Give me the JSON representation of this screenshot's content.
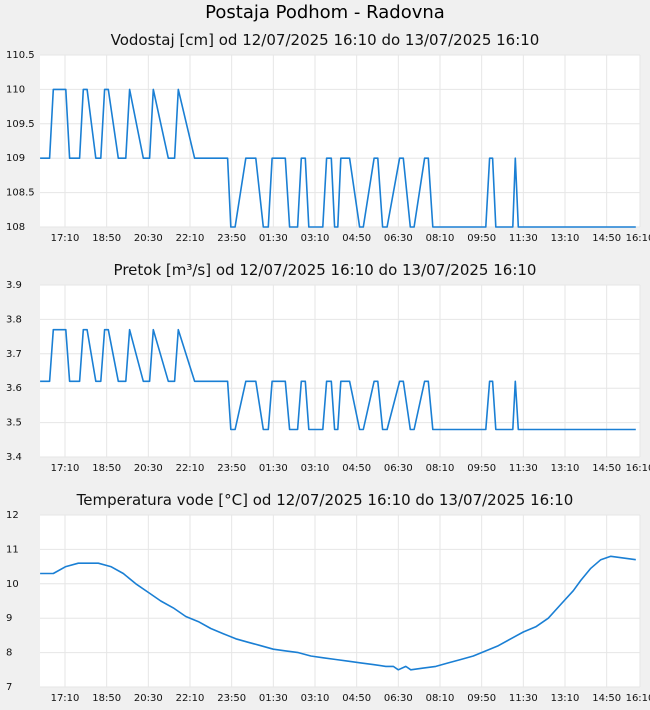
{
  "page": {
    "title": "Postaja Podhom - Radovna"
  },
  "chart_data": [
    {
      "type": "line",
      "title": "Vodostaj [cm] od 12/07/2025 16:10 do 13/07/2025 16:10",
      "xlabel": "",
      "ylabel": "",
      "x_range": [
        "12/07/2025 16:10",
        "13/07/2025 16:10"
      ],
      "ylim": [
        108,
        110.5
      ],
      "y_ticks": [
        "108",
        "108.5",
        "109",
        "109.5",
        "110",
        "110.5"
      ],
      "x_ticks": [
        "17:10",
        "18:50",
        "20:30",
        "22:10",
        "23:50",
        "01:30",
        "03:10",
        "04:50",
        "06:30",
        "08:10",
        "09:50",
        "11:30",
        "13:10",
        "14:50",
        "16:10"
      ],
      "grid": true,
      "color": "#1a7fd4",
      "series": [
        {
          "x": [
            16.17,
            16.55,
            16.7,
            16.85,
            17.2,
            17.35,
            17.5,
            17.75,
            17.9,
            18.05,
            18.4,
            18.6,
            18.75,
            18.9,
            19.3,
            19.5,
            19.6,
            19.75,
            20.3,
            20.5,
            20.55,
            20.7,
            21.3,
            21.5,
            21.55,
            21.7,
            22.35,
            23.67,
            23.8,
            23.97,
            24.4,
            24.57,
            24.8,
            25.1,
            25.3,
            25.45,
            25.98,
            26.15,
            26.47,
            26.62,
            26.78,
            26.92,
            27.48,
            27.63,
            27.82,
            27.95,
            28.08,
            28.2,
            28.42,
            28.55,
            28.95,
            29.1,
            29.53,
            29.68,
            29.87,
            30.05,
            30.55,
            30.7,
            30.98,
            31.13,
            31.55,
            31.7,
            31.88,
            32.05,
            34.0,
            34.15,
            34.27,
            34.4,
            34.95,
            35.08,
            35.18,
            35.3,
            40.0
          ],
          "y": [
            109,
            109,
            110,
            110,
            110,
            109,
            109,
            109,
            110,
            110,
            109,
            109,
            110,
            110,
            109,
            109,
            109,
            110,
            109,
            109,
            109,
            110,
            109,
            109,
            109,
            110,
            109,
            109,
            108,
            108,
            109,
            109,
            109,
            108,
            108,
            109,
            109,
            108,
            108,
            109,
            109,
            108,
            108,
            109,
            109,
            108,
            108,
            109,
            109,
            109,
            108,
            108,
            109,
            109,
            108,
            108,
            109,
            109,
            108,
            108,
            109,
            109,
            108,
            108,
            108,
            109,
            109,
            108,
            108,
            108,
            109,
            108,
            108
          ]
        }
      ]
    },
    {
      "type": "line",
      "title": "Pretok [m³/s] od 12/07/2025 16:10 do 13/07/2025 16:10",
      "xlabel": "",
      "ylabel": "",
      "x_range": [
        "12/07/2025 16:10",
        "13/07/2025 16:10"
      ],
      "ylim": [
        3.4,
        3.9
      ],
      "y_ticks": [
        "3.4",
        "3.5",
        "3.6",
        "3.7",
        "3.8",
        "3.9"
      ],
      "x_ticks": [
        "17:10",
        "18:50",
        "20:30",
        "22:10",
        "23:50",
        "01:30",
        "03:10",
        "04:50",
        "06:30",
        "08:10",
        "09:50",
        "11:30",
        "13:10",
        "14:50",
        "16:10"
      ],
      "grid": true,
      "color": "#1a7fd4",
      "series": [
        {
          "x": [
            16.17,
            16.55,
            16.7,
            16.85,
            17.2,
            17.35,
            17.5,
            17.75,
            17.9,
            18.05,
            18.4,
            18.6,
            18.75,
            18.9,
            19.3,
            19.5,
            19.6,
            19.75,
            20.3,
            20.5,
            20.55,
            20.7,
            21.3,
            21.5,
            21.55,
            21.7,
            22.35,
            23.67,
            23.8,
            23.97,
            24.4,
            24.57,
            24.8,
            25.1,
            25.3,
            25.45,
            25.98,
            26.15,
            26.47,
            26.62,
            26.78,
            26.92,
            27.48,
            27.63,
            27.82,
            27.95,
            28.08,
            28.2,
            28.42,
            28.55,
            28.95,
            29.1,
            29.53,
            29.68,
            29.87,
            30.05,
            30.55,
            30.7,
            30.98,
            31.13,
            31.55,
            31.7,
            31.88,
            32.05,
            34.0,
            34.15,
            34.27,
            34.4,
            34.95,
            35.08,
            35.18,
            35.3,
            40.0
          ],
          "y": [
            3.62,
            3.62,
            3.77,
            3.77,
            3.77,
            3.62,
            3.62,
            3.62,
            3.77,
            3.77,
            3.62,
            3.62,
            3.77,
            3.77,
            3.62,
            3.62,
            3.62,
            3.77,
            3.62,
            3.62,
            3.62,
            3.77,
            3.62,
            3.62,
            3.62,
            3.77,
            3.62,
            3.62,
            3.48,
            3.48,
            3.62,
            3.62,
            3.62,
            3.48,
            3.48,
            3.62,
            3.62,
            3.48,
            3.48,
            3.62,
            3.62,
            3.48,
            3.48,
            3.62,
            3.62,
            3.48,
            3.48,
            3.62,
            3.62,
            3.62,
            3.48,
            3.48,
            3.62,
            3.62,
            3.48,
            3.48,
            3.62,
            3.62,
            3.48,
            3.48,
            3.62,
            3.62,
            3.48,
            3.48,
            3.48,
            3.62,
            3.62,
            3.48,
            3.48,
            3.48,
            3.62,
            3.48,
            3.48
          ]
        }
      ]
    },
    {
      "type": "line",
      "title": "Temperatura vode [°C] od 12/07/2025 16:10 do 13/07/2025 16:10",
      "xlabel": "",
      "ylabel": "",
      "x_range": [
        "12/07/2025 16:10",
        "13/07/2025 16:10"
      ],
      "ylim": [
        7,
        12
      ],
      "y_ticks": [
        "7",
        "8",
        "9",
        "10",
        "11",
        "12"
      ],
      "x_ticks": [
        "17:10",
        "18:50",
        "20:30",
        "22:10",
        "23:50",
        "01:30",
        "03:10",
        "04:50",
        "06:30",
        "08:10",
        "09:50",
        "11:30",
        "13:10",
        "14:50",
        "16:10"
      ],
      "grid": true,
      "color": "#1a7fd4",
      "series": [
        {
          "x": [
            16.17,
            16.7,
            17.2,
            17.7,
            18.5,
            19.0,
            19.5,
            20.0,
            20.5,
            21.0,
            21.5,
            22.0,
            22.5,
            23.0,
            23.5,
            24.0,
            24.5,
            25.0,
            25.5,
            26.0,
            26.5,
            27.0,
            27.5,
            28.0,
            28.5,
            29.0,
            29.5,
            30.0,
            30.3,
            30.5,
            30.8,
            31.0,
            31.5,
            32.0,
            32.5,
            33.0,
            33.5,
            34.0,
            34.5,
            35.0,
            35.5,
            36.0,
            36.5,
            37.0,
            37.5,
            37.8,
            38.2,
            38.6,
            39.0,
            40.0
          ],
          "y": [
            10.3,
            10.3,
            10.5,
            10.6,
            10.6,
            10.5,
            10.3,
            10.0,
            9.75,
            9.5,
            9.3,
            9.05,
            8.9,
            8.7,
            8.55,
            8.4,
            8.3,
            8.2,
            8.1,
            8.05,
            8.0,
            7.9,
            7.85,
            7.8,
            7.75,
            7.7,
            7.65,
            7.6,
            7.6,
            7.5,
            7.6,
            7.5,
            7.55,
            7.6,
            7.7,
            7.8,
            7.9,
            8.05,
            8.2,
            8.4,
            8.6,
            8.75,
            9.0,
            9.4,
            9.8,
            10.1,
            10.45,
            10.7,
            10.8,
            10.7
          ]
        }
      ]
    }
  ]
}
